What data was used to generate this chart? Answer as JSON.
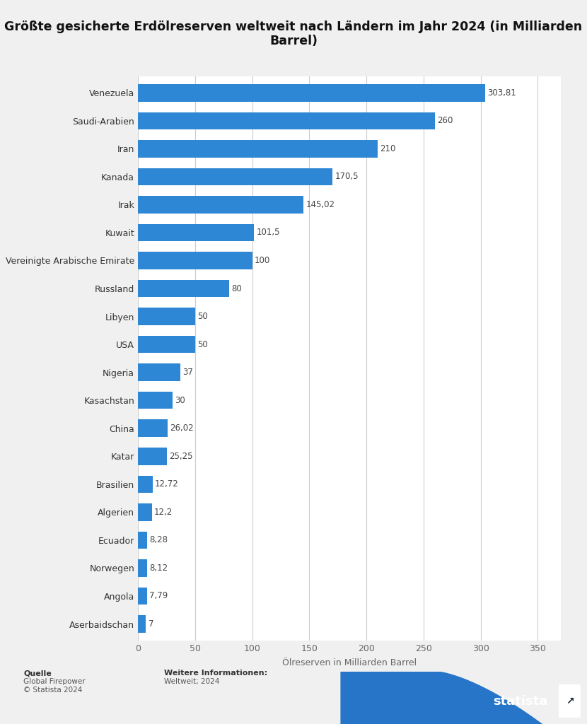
{
  "title": "Größte gesicherte Erdölreserven weltweit nach Ländern im Jahr 2024 (in Milliarden\nBarrel)",
  "xlabel": "Ölreserven in Milliarden Barrel",
  "categories": [
    "Aserbaidschan",
    "Angola",
    "Norwegen",
    "Ecuador",
    "Algerien",
    "Brasilien",
    "Katar",
    "China",
    "Kasachstan",
    "Nigeria",
    "USA",
    "Libyen",
    "Russland",
    "Vereinigte Arabische Emirate",
    "Kuwait",
    "Irak",
    "Kanada",
    "Iran",
    "Saudi-Arabien",
    "Venezuela"
  ],
  "values": [
    7,
    7.79,
    8.12,
    8.28,
    12.2,
    12.72,
    25.25,
    26.02,
    30,
    37,
    50,
    50,
    80,
    100,
    101.5,
    145.02,
    170.5,
    210,
    260,
    303.81
  ],
  "value_labels": [
    "7",
    "7,79",
    "8,12",
    "8,28",
    "12,2",
    "12,72",
    "25,25",
    "26,02",
    "30",
    "37",
    "50",
    "50",
    "80",
    "100",
    "101,5",
    "145,02",
    "170,5",
    "210",
    "260",
    "303,81"
  ],
  "bar_color": "#2e87d4",
  "bg_color": "#f0f0f0",
  "plot_bg_color": "#ffffff",
  "title_fontsize": 12.5,
  "label_fontsize": 9,
  "tick_fontsize": 9,
  "value_fontsize": 8.5,
  "xlim": [
    0,
    370
  ],
  "xticks": [
    0,
    50,
    100,
    150,
    200,
    250,
    300,
    350
  ],
  "source_label": "Quelle",
  "source_body": "Global Firepower\n© Statista 2024",
  "info_label": "Weitere Informationen:",
  "info_body": "Weltweit; 2024",
  "grid_color": "#cccccc",
  "statista_dark": "#152535",
  "statista_blue": "#2775c9"
}
